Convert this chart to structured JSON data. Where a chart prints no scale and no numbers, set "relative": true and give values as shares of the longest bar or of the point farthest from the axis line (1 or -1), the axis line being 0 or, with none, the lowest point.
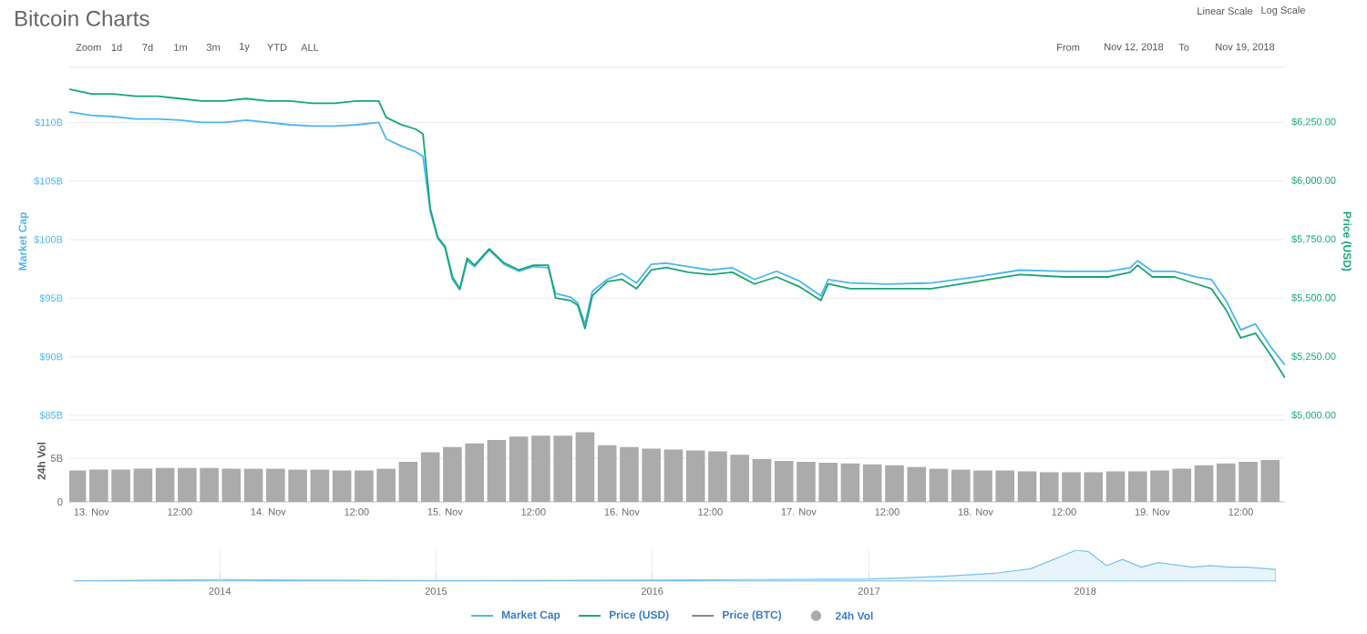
{
  "chart_data": [
    {
      "type": "line",
      "title": "Bitcoin Charts",
      "annotations": [
        "Zoom",
        "1d",
        "7d",
        "1m",
        "3m",
        "1y",
        "YTD",
        "ALL",
        "From",
        "Nov 12, 2018",
        "To",
        "Nov 19, 2018",
        "Linear Scale",
        "Log Scale"
      ],
      "ylabel": "Market Cap",
      "y2label": "Price (USD)",
      "x": [
        "2018-11-12T21:00",
        "2018-11-13T00:00",
        "2018-11-13T03:00",
        "2018-11-13T06:00",
        "2018-11-13T09:00",
        "2018-11-13T12:00",
        "2018-11-13T15:00",
        "2018-11-13T18:00",
        "2018-11-13T21:00",
        "2018-11-14T00:00",
        "2018-11-14T03:00",
        "2018-11-14T06:00",
        "2018-11-14T09:00",
        "2018-11-14T12:00",
        "2018-11-14T15:00",
        "2018-11-14T16:00",
        "2018-11-14T18:00",
        "2018-11-14T20:00",
        "2018-11-14T21:00",
        "2018-11-14T22:00",
        "2018-11-14T23:00",
        "2018-11-15T00:00",
        "2018-11-15T01:00",
        "2018-11-15T02:00",
        "2018-11-15T03:00",
        "2018-11-15T04:00",
        "2018-11-15T06:00",
        "2018-11-15T08:00",
        "2018-11-15T10:00",
        "2018-11-15T12:00",
        "2018-11-15T14:00",
        "2018-11-15T15:00",
        "2018-11-15T17:00",
        "2018-11-15T18:00",
        "2018-11-15T19:00",
        "2018-11-15T20:00",
        "2018-11-15T22:00",
        "2018-11-16T00:00",
        "2018-11-16T02:00",
        "2018-11-16T04:00",
        "2018-11-16T06:00",
        "2018-11-16T09:00",
        "2018-11-16T12:00",
        "2018-11-16T15:00",
        "2018-11-16T18:00",
        "2018-11-16T21:00",
        "2018-11-17T00:00",
        "2018-11-17T03:00",
        "2018-11-17T04:00",
        "2018-11-17T07:00",
        "2018-11-17T12:00",
        "2018-11-17T18:00",
        "2018-11-18T00:00",
        "2018-11-18T06:00",
        "2018-11-18T12:00",
        "2018-11-18T18:00",
        "2018-11-18T21:00",
        "2018-11-18T22:00",
        "2018-11-19T00:00",
        "2018-11-19T03:00",
        "2018-11-19T06:00",
        "2018-11-19T08:00",
        "2018-11-19T10:00",
        "2018-11-19T12:00",
        "2018-11-19T14:00",
        "2018-11-19T16:00",
        "2018-11-19T18:00"
      ],
      "series": [
        {
          "name": "Market Cap",
          "color": "#4db6f0",
          "values": [
            110.9,
            110.6,
            110.5,
            110.3,
            110.3,
            110.2,
            110.0,
            110.0,
            110.2,
            110.0,
            109.8,
            109.7,
            109.7,
            109.8,
            110.0,
            108.6,
            108.0,
            107.5,
            107.1,
            102.4,
            100.1,
            99.3,
            96.6,
            95.7,
            98.2,
            97.7,
            99.1,
            97.9,
            97.3,
            97.7,
            97.6,
            95.4,
            95.1,
            94.6,
            92.8,
            95.6,
            96.6,
            97.1,
            96.3,
            97.9,
            98.0,
            97.7,
            97.4,
            97.6,
            96.6,
            97.3,
            96.5,
            95.2,
            96.6,
            96.3,
            96.2,
            96.3,
            96.8,
            97.4,
            97.3,
            97.3,
            97.6,
            98.2,
            97.3,
            97.3,
            96.8,
            96.6,
            94.8,
            92.3,
            92.8,
            90.9,
            89.3
          ]
        },
        {
          "name": "Price (USD)",
          "color": "#17a673",
          "axis": "y2",
          "values": [
            6390,
            6370,
            6370,
            6360,
            6360,
            6350,
            6340,
            6340,
            6350,
            6340,
            6340,
            6330,
            6330,
            6340,
            6340,
            6270,
            6240,
            6220,
            6200,
            5880,
            5760,
            5720,
            5590,
            5540,
            5670,
            5640,
            5710,
            5650,
            5620,
            5640,
            5640,
            5500,
            5490,
            5470,
            5370,
            5510,
            5570,
            5580,
            5540,
            5620,
            5630,
            5610,
            5600,
            5610,
            5560,
            5590,
            5550,
            5490,
            5560,
            5540,
            5540,
            5540,
            5570,
            5600,
            5590,
            5590,
            5610,
            5640,
            5590,
            5590,
            5560,
            5540,
            5450,
            5330,
            5350,
            5260,
            5160
          ]
        },
        {
          "name": "Price (BTC)",
          "color": "#888888",
          "values": [
            null,
            null,
            null,
            null,
            null,
            null,
            null,
            null,
            null,
            null,
            null,
            null,
            null,
            null,
            null,
            null,
            null,
            null,
            null,
            null,
            null,
            null,
            null,
            null,
            null,
            null,
            null,
            null,
            null,
            null,
            null,
            null,
            null,
            null,
            null,
            null,
            null,
            null,
            null,
            null,
            null,
            null,
            null,
            null,
            null,
            null,
            null,
            null,
            null,
            null,
            null,
            null,
            null,
            null,
            null,
            null,
            null,
            null,
            null,
            null,
            null,
            null,
            null,
            null,
            null,
            null,
            null
          ]
        }
      ],
      "xlim": [
        "2018-11-12T21:00",
        "2018-11-19T18:00"
      ],
      "ylim": [
        85,
        114.7
      ],
      "yticks": [
        {
          "value": 85,
          "label": "$85B"
        },
        {
          "value": 90,
          "label": "$90B"
        },
        {
          "value": 95,
          "label": "$95B"
        },
        {
          "value": 100,
          "label": "$100B"
        },
        {
          "value": 105,
          "label": "$105B"
        },
        {
          "value": 110,
          "label": "$110B"
        }
      ],
      "y2lim": [
        5000,
        6483
      ],
      "y2ticks": [
        {
          "value": 5000,
          "label": "$5,000.00"
        },
        {
          "value": 5250,
          "label": "$5,250.00"
        },
        {
          "value": 5500,
          "label": "$5,500.00"
        },
        {
          "value": 5750,
          "label": "$5,750.00"
        },
        {
          "value": 6000,
          "label": "$6,000.00"
        },
        {
          "value": 6250,
          "label": "$6,250.00"
        }
      ],
      "grid": "y",
      "tick_labels": "y",
      "legend": "bottom"
    },
    {
      "type": "bar",
      "ylabel": "24h Vol",
      "series": [
        {
          "name": "24h Vol",
          "color": "#ababab",
          "x": [
            "2018-11-12T22:00",
            "2018-11-13T01:00",
            "2018-11-13T04:00",
            "2018-11-13T07:00",
            "2018-11-13T10:00",
            "2018-11-13T13:00",
            "2018-11-13T16:00",
            "2018-11-13T19:00",
            "2018-11-13T22:00",
            "2018-11-14T01:00",
            "2018-11-14T04:00",
            "2018-11-14T07:00",
            "2018-11-14T10:00",
            "2018-11-14T13:00",
            "2018-11-14T16:00",
            "2018-11-14T19:00",
            "2018-11-14T22:00",
            "2018-11-15T01:00",
            "2018-11-15T04:00",
            "2018-11-15T07:00",
            "2018-11-15T10:00",
            "2018-11-15T13:00",
            "2018-11-15T16:00",
            "2018-11-15T19:00",
            "2018-11-15T22:00",
            "2018-11-16T01:00",
            "2018-11-16T04:00",
            "2018-11-16T07:00",
            "2018-11-16T10:00",
            "2018-11-16T13:00",
            "2018-11-16T16:00",
            "2018-11-16T19:00",
            "2018-11-16T22:00",
            "2018-11-17T01:00",
            "2018-11-17T04:00",
            "2018-11-17T07:00",
            "2018-11-17T10:00",
            "2018-11-17T13:00",
            "2018-11-17T16:00",
            "2018-11-17T19:00",
            "2018-11-17T22:00",
            "2018-11-18T01:00",
            "2018-11-18T04:00",
            "2018-11-18T07:00",
            "2018-11-18T10:00",
            "2018-11-18T13:00",
            "2018-11-18T16:00",
            "2018-11-18T19:00",
            "2018-11-18T22:00",
            "2018-11-19T01:00",
            "2018-11-19T04:00",
            "2018-11-19T07:00",
            "2018-11-19T10:00",
            "2018-11-19T13:00",
            "2018-11-19T16:00"
          ],
          "values": [
            3.6,
            3.7,
            3.7,
            3.8,
            3.9,
            3.9,
            3.9,
            3.8,
            3.8,
            3.8,
            3.7,
            3.7,
            3.6,
            3.6,
            3.8,
            4.6,
            5.7,
            6.3,
            6.7,
            7.1,
            7.5,
            7.6,
            7.6,
            8.0,
            6.5,
            6.3,
            6.1,
            6.0,
            5.9,
            5.8,
            5.4,
            4.9,
            4.7,
            4.6,
            4.5,
            4.4,
            4.3,
            4.2,
            4.0,
            3.8,
            3.7,
            3.6,
            3.6,
            3.5,
            3.4,
            3.4,
            3.4,
            3.5,
            3.5,
            3.6,
            3.8,
            4.2,
            4.4,
            4.6,
            4.8
          ]
        }
      ],
      "xlim": [
        "2018-11-12T21:00",
        "2018-11-19T18:00"
      ],
      "xticks": [
        {
          "value": "2018-11-13",
          "label": "13. Nov"
        },
        {
          "value": "2018-11-13T12:00",
          "label": "12:00"
        },
        {
          "value": "2018-11-14",
          "label": "14. Nov"
        },
        {
          "value": "2018-11-14T12:00",
          "label": "12:00"
        },
        {
          "value": "2018-11-15",
          "label": "15. Nov"
        },
        {
          "value": "2018-11-15T12:00",
          "label": "12:00"
        },
        {
          "value": "2018-11-16",
          "label": "16. Nov"
        },
        {
          "value": "2018-11-16T12:00",
          "label": "12:00"
        },
        {
          "value": "2018-11-17",
          "label": "17. Nov"
        },
        {
          "value": "2018-11-17T12:00",
          "label": "12:00"
        },
        {
          "value": "2018-11-18",
          "label": "18. Nov"
        },
        {
          "value": "2018-11-18T12:00",
          "label": "12:00"
        },
        {
          "value": "2018-11-19",
          "label": "19. Nov"
        },
        {
          "value": "2018-11-19T12:00",
          "label": "12:00"
        }
      ],
      "ylim": [
        0,
        9.4
      ],
      "yticks": [
        0,
        {
          "value": 5,
          "label": "5B"
        }
      ],
      "grid": "y",
      "legend": "bottom"
    },
    {
      "type": "area",
      "relative": true,
      "x": [
        "2013-05",
        "2014-01",
        "2014-06",
        "2015-01",
        "2016-01",
        "2016-06",
        "2017-01",
        "2017-05",
        "2017-08",
        "2017-10",
        "2017-12-17",
        "2018-01-07",
        "2018-02-06",
        "2018-03-05",
        "2018-04-06",
        "2018-05-05",
        "2018-07-01",
        "2018-08-01",
        "2018-09-01",
        "2018-10-01",
        "2018-11-19"
      ],
      "series": [
        {
          "color": "#7cc1ee",
          "values": [
            0.01,
            0.05,
            0.03,
            0.02,
            0.03,
            0.05,
            0.07,
            0.15,
            0.25,
            0.4,
            1.0,
            0.95,
            0.5,
            0.7,
            0.45,
            0.6,
            0.45,
            0.5,
            0.45,
            0.45,
            0.38
          ]
        }
      ],
      "xlim": [
        "2013-04-28",
        "2018-11-19"
      ],
      "xticks": [
        "2014",
        "2015",
        "2016",
        "2017",
        "2018"
      ],
      "grid": "x",
      "tick_labels": "x"
    }
  ]
}
